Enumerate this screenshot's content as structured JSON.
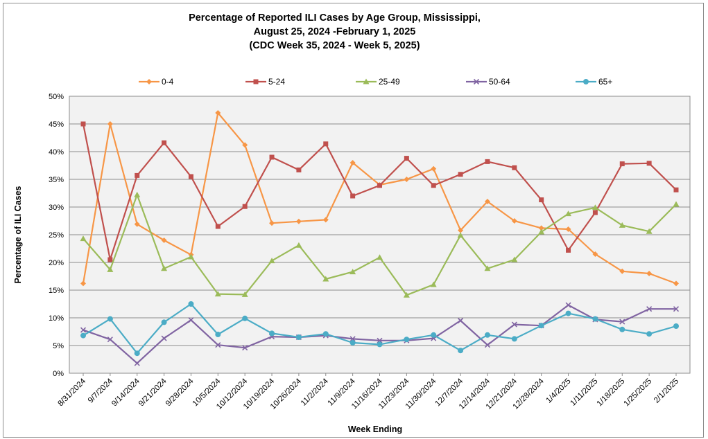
{
  "chart_data": {
    "type": "line",
    "title_lines": [
      "Percentage of Reported ILI Cases by Age Group, Mississippi,",
      "August 25, 2024 -February 1, 2025",
      "(CDC Week 35, 2024 - Week 5, 2025)"
    ],
    "xlabel": "Week Ending",
    "ylabel": "Percentage of ILI Cases",
    "ylim": [
      0,
      50
    ],
    "yticks": [
      "0%",
      "5%",
      "10%",
      "15%",
      "20%",
      "25%",
      "30%",
      "35%",
      "40%",
      "45%",
      "50%"
    ],
    "categories": [
      "8/31/2024",
      "9/7/2024",
      "9/14/2024",
      "9/21/2024",
      "9/28/2024",
      "10/5/2024",
      "10/12/2024",
      "10/19/2024",
      "10/26/2024",
      "11/2/2024",
      "11/9/2024",
      "11/16/2024",
      "11/23/2024",
      "11/30/2024",
      "12/7/2024",
      "12/14/2024",
      "12/21/2024",
      "12/28/2024",
      "1/4/2025",
      "1/11/2025",
      "1/18/2025",
      "1/25/2025",
      "2/1/2025"
    ],
    "grid": true,
    "legend_position": "top",
    "series": [
      {
        "name": "0-4",
        "color": "#F79646",
        "marker": "diamond",
        "values": [
          16.2,
          45.0,
          26.9,
          24.0,
          21.4,
          47.0,
          41.2,
          27.1,
          27.4,
          27.7,
          38.0,
          34.0,
          35.0,
          36.9,
          25.8,
          31.0,
          27.5,
          26.2,
          26.0,
          21.5,
          18.4,
          18.0,
          16.2
        ]
      },
      {
        "name": "5-24",
        "color": "#C0504D",
        "marker": "square",
        "values": [
          45.0,
          20.5,
          35.7,
          41.6,
          35.5,
          26.5,
          30.1,
          39.0,
          36.7,
          41.4,
          32.0,
          33.9,
          38.8,
          33.9,
          35.9,
          38.2,
          37.1,
          31.3,
          22.2,
          29.0,
          37.8,
          37.9,
          33.1
        ]
      },
      {
        "name": "25-49",
        "color": "#9BBB59",
        "marker": "triangle",
        "values": [
          24.3,
          18.7,
          32.2,
          18.9,
          21.0,
          14.3,
          14.2,
          20.3,
          23.1,
          17.0,
          18.3,
          20.9,
          14.1,
          16.0,
          24.9,
          18.9,
          20.5,
          25.5,
          28.8,
          29.9,
          26.7,
          25.6,
          30.5
        ]
      },
      {
        "name": "50-64",
        "color": "#8064A2",
        "marker": "x",
        "values": [
          7.8,
          6.1,
          1.8,
          6.3,
          9.6,
          5.1,
          4.6,
          6.6,
          6.5,
          6.8,
          6.2,
          5.9,
          5.9,
          6.3,
          9.5,
          5.1,
          8.8,
          8.6,
          12.3,
          9.7,
          9.3,
          11.6,
          11.6
        ]
      },
      {
        "name": "65+",
        "color": "#4BACC6",
        "marker": "circle",
        "values": [
          6.8,
          9.8,
          3.6,
          9.2,
          12.5,
          7.0,
          9.9,
          7.2,
          6.5,
          7.1,
          5.5,
          5.2,
          6.1,
          6.9,
          4.1,
          6.9,
          6.2,
          8.6,
          10.8,
          9.8,
          7.9,
          7.1,
          8.5
        ]
      }
    ]
  }
}
